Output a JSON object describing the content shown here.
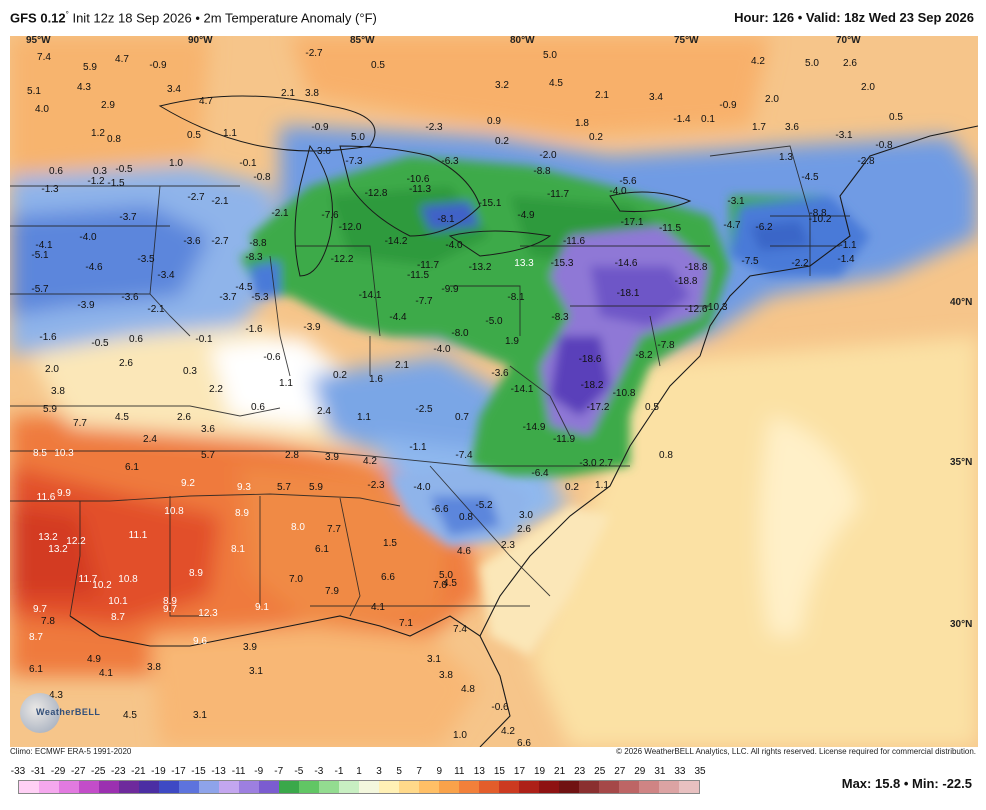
{
  "header": {
    "model": "GFS 0.12",
    "degree_mark": "°",
    "init": "Init 12z 18 Sep 2026",
    "bullet": "•",
    "product": "2m Temperature Anomaly (°F)",
    "hour_label": "Hour: 126",
    "valid_label": "Valid: 18z Wed 23 Sep 2026"
  },
  "map": {
    "longitudes": [
      "95°W",
      "90°W",
      "85°W",
      "80°W",
      "75°W",
      "70°W"
    ],
    "latitudes": [
      "40°N",
      "35°N",
      "30°N"
    ],
    "values": [
      {
        "v": "7.4"
      },
      {
        "v": "5.9"
      },
      {
        "v": "4.7"
      },
      {
        "v": "-0.9"
      },
      {
        "v": "-2.7"
      },
      {
        "v": "0.5"
      },
      {
        "v": "5.0"
      },
      {
        "v": "4.2"
      },
      {
        "v": "5.0"
      },
      {
        "v": "2.6"
      },
      {
        "v": "5.1"
      },
      {
        "v": "4.3"
      },
      {
        "v": "3.4"
      },
      {
        "v": "2.1"
      },
      {
        "v": "3.8"
      },
      {
        "v": "3.2"
      },
      {
        "v": "4.5"
      },
      {
        "v": "2.1"
      },
      {
        "v": "3.4"
      },
      {
        "v": "-0.9"
      },
      {
        "v": "2.0"
      },
      {
        "v": "2.0"
      },
      {
        "v": "4.0"
      },
      {
        "v": "2.9"
      },
      {
        "v": "4.7"
      },
      {
        "v": "1.2"
      },
      {
        "v": "0.8"
      },
      {
        "v": "0.5"
      },
      {
        "v": "1.1"
      },
      {
        "v": "-0.9"
      },
      {
        "v": "-2.3"
      },
      {
        "v": "0.9"
      },
      {
        "v": "0.2"
      },
      {
        "v": "1.8"
      },
      {
        "v": "0.2"
      },
      {
        "v": "-1.4"
      },
      {
        "v": "0.1"
      },
      {
        "v": "1.7"
      },
      {
        "v": "3.6"
      },
      {
        "v": "0.5"
      },
      {
        "v": "-3.1"
      },
      {
        "v": "0.6"
      },
      {
        "v": "0.3"
      },
      {
        "v": "-0.5"
      },
      {
        "v": "1.0"
      },
      {
        "v": "-0.1"
      },
      {
        "v": "3.0"
      },
      {
        "v": "5.0"
      },
      {
        "v": "-2.0"
      },
      {
        "v": "-0.8"
      },
      {
        "v": "-2.8"
      },
      {
        "v": "1.3"
      },
      {
        "v": "-1.3"
      },
      {
        "v": "-1.2"
      },
      {
        "v": "-1.5"
      },
      {
        "v": "-0.8"
      },
      {
        "v": "-7.3"
      },
      {
        "v": "-6.3"
      },
      {
        "v": "-8.8"
      },
      {
        "v": "-10.6"
      },
      {
        "v": "-4.0"
      },
      {
        "v": "-5.6"
      },
      {
        "v": "-4.5"
      },
      {
        "v": "-2.7"
      },
      {
        "v": "-2.1"
      },
      {
        "v": "-12.8"
      },
      {
        "v": "-11.3"
      },
      {
        "v": "-15.1"
      },
      {
        "v": "-11.7"
      },
      {
        "v": "-3.1"
      },
      {
        "v": "-8.8"
      },
      {
        "v": "-3.7"
      },
      {
        "v": "-2.1"
      },
      {
        "v": "-7.6"
      },
      {
        "v": "-12.0"
      },
      {
        "v": "-8.1"
      },
      {
        "v": "-4.9"
      },
      {
        "v": "-17.1"
      },
      {
        "v": "-11.5"
      },
      {
        "v": "-4.7"
      },
      {
        "v": "-6.2"
      },
      {
        "v": "-10.2"
      },
      {
        "v": "-4.0"
      },
      {
        "v": "-4.1"
      },
      {
        "v": "-3.6"
      },
      {
        "v": "-2.7"
      },
      {
        "v": "-8.8"
      },
      {
        "v": "-14.2"
      },
      {
        "v": "-4.0"
      },
      {
        "v": "-11.6"
      },
      {
        "v": "-1.1"
      },
      {
        "v": "-5.1"
      },
      {
        "v": "-4.6"
      },
      {
        "v": "-3.5"
      },
      {
        "v": "-8.3"
      },
      {
        "v": "-12.2"
      },
      {
        "v": "-11.7"
      },
      {
        "v": "-13.2"
      },
      {
        "v": "13.3"
      },
      {
        "v": "-15.3"
      },
      {
        "v": "-14.6"
      },
      {
        "v": "-18.8"
      },
      {
        "v": "-7.5"
      },
      {
        "v": "-2.2"
      },
      {
        "v": "-1.4"
      },
      {
        "v": "-3.4"
      },
      {
        "v": "-11.5"
      },
      {
        "v": "-18.8"
      },
      {
        "v": "-5.7"
      },
      {
        "v": "-3.6"
      },
      {
        "v": "-4.5"
      },
      {
        "v": "-14.1"
      },
      {
        "v": "-9.9"
      },
      {
        "v": "-18.1"
      },
      {
        "v": "-3.9"
      },
      {
        "v": "-2.1"
      },
      {
        "v": "-3.7"
      },
      {
        "v": "-5.3"
      },
      {
        "v": "-7.7"
      },
      {
        "v": "-8.1"
      },
      {
        "v": "-12.6"
      },
      {
        "v": "-10.3"
      },
      {
        "v": "-1.6"
      },
      {
        "v": "-0.5"
      },
      {
        "v": "0.6"
      },
      {
        "v": "-0.1"
      },
      {
        "v": "-1.6"
      },
      {
        "v": "-3.9"
      },
      {
        "v": "-4.4"
      },
      {
        "v": "-8.0"
      },
      {
        "v": "-5.0"
      },
      {
        "v": "-8.3"
      },
      {
        "v": "2.6"
      },
      {
        "v": "-0.6"
      },
      {
        "v": "-4.0"
      },
      {
        "v": "1.9"
      },
      {
        "v": "-18.6"
      },
      {
        "v": "-8.2"
      },
      {
        "v": "-7.8"
      },
      {
        "v": "2.0"
      },
      {
        "v": "0.3"
      },
      {
        "v": "0.2"
      },
      {
        "v": "1.6"
      },
      {
        "v": "2.1"
      },
      {
        "v": "-3.6"
      },
      {
        "v": "3.8"
      },
      {
        "v": "2.2"
      },
      {
        "v": "1.1"
      },
      {
        "v": "-14.1"
      },
      {
        "v": "-18.2"
      },
      {
        "v": "-10.8"
      },
      {
        "v": "5.9"
      },
      {
        "v": "0.6"
      },
      {
        "v": "2.4"
      },
      {
        "v": "1.1"
      },
      {
        "v": "-2.5"
      },
      {
        "v": "0.7"
      },
      {
        "v": "-17.2"
      },
      {
        "v": "0.5"
      },
      {
        "v": "7.7"
      },
      {
        "v": "4.5"
      },
      {
        "v": "2.6"
      },
      {
        "v": "3.6"
      },
      {
        "v": "-14.9"
      },
      {
        "v": "2.4"
      },
      {
        "v": "-11.9"
      },
      {
        "v": "8.5"
      },
      {
        "v": "10.3"
      },
      {
        "v": "5.7"
      },
      {
        "v": "2.8"
      },
      {
        "v": "3.9"
      },
      {
        "v": "4.2"
      },
      {
        "v": "-1.1"
      },
      {
        "v": "-7.4"
      },
      {
        "v": "-3.0"
      },
      {
        "v": "2.7"
      },
      {
        "v": "0.8"
      },
      {
        "v": "6.1"
      },
      {
        "v": "-6.4"
      },
      {
        "v": "9.2"
      },
      {
        "v": "9.3"
      },
      {
        "v": "5.7"
      },
      {
        "v": "5.9"
      },
      {
        "v": "-2.3"
      },
      {
        "v": "-4.0"
      },
      {
        "v": "0.2"
      },
      {
        "v": "1.1"
      },
      {
        "v": "11.6"
      },
      {
        "v": "9.9"
      },
      {
        "v": "-6.6"
      },
      {
        "v": "-5.2"
      },
      {
        "v": "10.8"
      },
      {
        "v": "8.9"
      },
      {
        "v": "0.8"
      },
      {
        "v": "3.0"
      },
      {
        "v": "8.0"
      },
      {
        "v": "7.7"
      },
      {
        "v": "2.6"
      },
      {
        "v": "13.2"
      },
      {
        "v": "12.2"
      },
      {
        "v": "11.1"
      },
      {
        "v": "1.5"
      },
      {
        "v": "13.2"
      },
      {
        "v": "8.1"
      },
      {
        "v": "6.1"
      },
      {
        "v": "4.6"
      },
      {
        "v": "2.3"
      },
      {
        "v": "8.9"
      },
      {
        "v": "11.7"
      },
      {
        "v": "10.8"
      },
      {
        "v": "7.0"
      },
      {
        "v": "6.6"
      },
      {
        "v": "5.0"
      },
      {
        "v": "10.2"
      },
      {
        "v": "7.9"
      },
      {
        "v": "7.0"
      },
      {
        "v": "4.5"
      },
      {
        "v": "10.1"
      },
      {
        "v": "8.9"
      },
      {
        "v": "9.7"
      },
      {
        "v": "9.7"
      },
      {
        "v": "12.3"
      },
      {
        "v": "7.8"
      },
      {
        "v": "8.7"
      },
      {
        "v": "9.1"
      },
      {
        "v": "4.1"
      },
      {
        "v": "7.1"
      },
      {
        "v": "8.7"
      },
      {
        "v": "9.6"
      },
      {
        "v": "3.9"
      },
      {
        "v": "7.4"
      },
      {
        "v": "6.1"
      },
      {
        "v": "4.9"
      },
      {
        "v": "3.8"
      },
      {
        "v": "3.1"
      },
      {
        "v": "3.1"
      },
      {
        "v": "4.1"
      },
      {
        "v": "3.8"
      },
      {
        "v": "4.3"
      },
      {
        "v": "4.8"
      },
      {
        "v": "4.5"
      },
      {
        "v": "3.1"
      },
      {
        "v": "-0.6"
      },
      {
        "v": "1.0"
      },
      {
        "v": "6.6"
      },
      {
        "v": "4.2"
      }
    ]
  },
  "logo": {
    "text": "WeatherBELL"
  },
  "footer": {
    "climo": "Climo: ECMWF ERA-5 1991-2020",
    "copyright": "© 2026 WeatherBELL Analytics, LLC. All rights reserved. License required for commercial distribution."
  },
  "colorbar": {
    "ticks": [
      "-33",
      "-31",
      "-29",
      "-27",
      "-25",
      "-23",
      "-21",
      "-19",
      "-17",
      "-15",
      "-13",
      "-11",
      "-9",
      "-7",
      "-5",
      "-3",
      "-1",
      "1",
      "3",
      "5",
      "7",
      "9",
      "11",
      "13",
      "15",
      "17",
      "19",
      "21",
      "23",
      "25",
      "27",
      "29",
      "31",
      "33",
      "35"
    ],
    "colors": [
      "#ffd0f5",
      "#f5a8ee",
      "#e27ae0",
      "#c34dc9",
      "#9b30b0",
      "#6e2a9c",
      "#4b2ea3",
      "#3e49c4",
      "#5d73dd",
      "#8ea3ea",
      "#c3a6ef",
      "#9d7fe0",
      "#7b5cd0",
      "#3aa84a",
      "#61c664",
      "#93dc90",
      "#c8efc2",
      "#f3f7dd",
      "#fff0b5",
      "#ffd98a",
      "#ffbf66",
      "#f9a24a",
      "#f2803a",
      "#e35d2b",
      "#cc3a20",
      "#ad2018",
      "#8e1212",
      "#701212",
      "#8a2f2f",
      "#a54848",
      "#bd6565",
      "#cf8484",
      "#dca3a3",
      "#e8c0c0"
    ]
  },
  "stats": {
    "max_min": "Max: 15.8 • Min: -22.5"
  }
}
